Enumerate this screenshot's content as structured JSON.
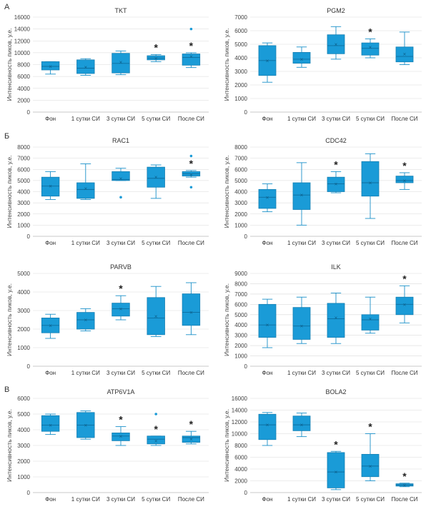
{
  "section_labels": [
    "А",
    "Б",
    "В"
  ],
  "chart_data": [
    {
      "type": "box",
      "title": "TKT",
      "ylabel": "Интенсивность пиков, у.е.",
      "categories": [
        "Фон",
        "1 сутки СИ",
        "3 сутки СИ",
        "5 сутки СИ",
        "После СИ"
      ],
      "ylim": [
        0,
        16000
      ],
      "yticks": [
        0,
        2000,
        4000,
        6000,
        8000,
        10000,
        12000,
        14000,
        16000
      ],
      "boxes": [
        {
          "min": 6400,
          "q1": 7100,
          "median": 7700,
          "q3": 8500,
          "max": 8500,
          "mean": 7700
        },
        {
          "min": 6200,
          "q1": 6500,
          "median": 7400,
          "q3": 8800,
          "max": 9000,
          "mean": 7600
        },
        {
          "min": 6300,
          "q1": 6600,
          "median": 8200,
          "q3": 9900,
          "max": 10300,
          "mean": 8400
        },
        {
          "min": 8500,
          "q1": 8800,
          "median": 9100,
          "q3": 9500,
          "max": 9700,
          "mean": 9100
        },
        {
          "min": 7500,
          "q1": 7900,
          "median": 9200,
          "q3": 9800,
          "max": 10000,
          "mean": 9400,
          "outliers": [
            14000
          ]
        }
      ],
      "significant": [
        false,
        false,
        false,
        true,
        true
      ]
    },
    {
      "type": "box",
      "title": "PGM2",
      "ylabel": "Интенсивность пиков, у.е.",
      "categories": [
        "Фон",
        "1 сутки СИ",
        "3 сутки СИ",
        "5 сутки СИ",
        "После СИ"
      ],
      "ylim": [
        0,
        7000
      ],
      "yticks": [
        0,
        1000,
        2000,
        3000,
        4000,
        5000,
        6000,
        7000
      ],
      "boxes": [
        {
          "min": 2200,
          "q1": 2700,
          "median": 3800,
          "q3": 4900,
          "max": 5100,
          "mean": 3800
        },
        {
          "min": 3300,
          "q1": 3600,
          "median": 3900,
          "q3": 4400,
          "max": 4800,
          "mean": 3900
        },
        {
          "min": 3900,
          "q1": 4300,
          "median": 4900,
          "q3": 5700,
          "max": 6300,
          "mean": 5000
        },
        {
          "min": 4000,
          "q1": 4200,
          "median": 4700,
          "q3": 5100,
          "max": 5400,
          "mean": 4800
        },
        {
          "min": 3500,
          "q1": 3700,
          "median": 4100,
          "q3": 4800,
          "max": 5900,
          "mean": 4300
        }
      ],
      "significant": [
        false,
        false,
        false,
        true,
        false
      ]
    },
    {
      "type": "box",
      "title": "RAC1",
      "ylabel": "Интенсивность пиков, у.е.",
      "categories": [
        "Фон",
        "1 сутки СИ",
        "3 сутки СИ",
        "5 сутки СИ",
        "После СИ"
      ],
      "ylim": [
        0,
        8000
      ],
      "yticks": [
        0,
        1000,
        2000,
        3000,
        4000,
        5000,
        6000,
        7000,
        8000
      ],
      "boxes": [
        {
          "min": 3300,
          "q1": 3600,
          "median": 4500,
          "q3": 5300,
          "max": 5800,
          "mean": 4500
        },
        {
          "min": 3300,
          "q1": 3400,
          "median": 4200,
          "q3": 4800,
          "max": 6500,
          "mean": 4300
        },
        {
          "min": 5000,
          "q1": 5000,
          "median": 5100,
          "q3": 5800,
          "max": 6100,
          "mean": 5200,
          "outliers": [
            3500
          ]
        },
        {
          "min": 3400,
          "q1": 4400,
          "median": 5200,
          "q3": 6200,
          "max": 6400,
          "mean": 5300
        },
        {
          "min": 5300,
          "q1": 5400,
          "median": 5600,
          "q3": 5800,
          "max": 5900,
          "mean": 5500,
          "outliers": [
            7200,
            4400
          ]
        }
      ],
      "significant": [
        false,
        false,
        false,
        false,
        true
      ]
    },
    {
      "type": "box",
      "title": "CDC42",
      "ylabel": "Интенсивность пиков, у.е.",
      "categories": [
        "Фон",
        "1 сутки СИ",
        "3 сутки СИ",
        "5 сутки СИ",
        "После СИ"
      ],
      "ylim": [
        0,
        8000
      ],
      "yticks": [
        0,
        1000,
        2000,
        3000,
        4000,
        5000,
        6000,
        7000,
        8000
      ],
      "boxes": [
        {
          "min": 2200,
          "q1": 2500,
          "median": 3500,
          "q3": 4200,
          "max": 4700,
          "mean": 3500
        },
        {
          "min": 1000,
          "q1": 2400,
          "median": 3700,
          "q3": 4800,
          "max": 6600,
          "mean": 3700
        },
        {
          "min": 3900,
          "q1": 4000,
          "median": 4700,
          "q3": 5300,
          "max": 5800,
          "mean": 4700
        },
        {
          "min": 1600,
          "q1": 3600,
          "median": 4800,
          "q3": 6700,
          "max": 7400,
          "mean": 4800
        },
        {
          "min": 4200,
          "q1": 4800,
          "median": 5000,
          "q3": 5400,
          "max": 5700,
          "mean": 5000
        }
      ],
      "significant": [
        false,
        false,
        true,
        false,
        true
      ]
    },
    {
      "type": "box",
      "title": "PARVB",
      "ylabel": "Интенсивность пиков, у.е.",
      "categories": [
        "Фон",
        "1 сутки СИ",
        "3 сутки СИ",
        "5 сутки СИ",
        "После СИ"
      ],
      "ylim": [
        0,
        5000
      ],
      "yticks": [
        0,
        1000,
        2000,
        3000,
        4000,
        5000
      ],
      "boxes": [
        {
          "min": 1500,
          "q1": 1800,
          "median": 2200,
          "q3": 2600,
          "max": 2800,
          "mean": 2200
        },
        {
          "min": 1900,
          "q1": 2000,
          "median": 2500,
          "q3": 2900,
          "max": 3100,
          "mean": 2500
        },
        {
          "min": 2500,
          "q1": 2700,
          "median": 3100,
          "q3": 3400,
          "max": 3800,
          "mean": 3100
        },
        {
          "min": 1600,
          "q1": 1700,
          "median": 2600,
          "q3": 3700,
          "max": 4300,
          "mean": 2700
        },
        {
          "min": 1700,
          "q1": 2200,
          "median": 2900,
          "q3": 3900,
          "max": 4500,
          "mean": 2900
        }
      ],
      "significant": [
        false,
        false,
        true,
        false,
        false
      ]
    },
    {
      "type": "box",
      "title": "ILK",
      "ylabel": "Интенсивность пиков, у.е.",
      "categories": [
        "Фон",
        "1 сутки СИ",
        "3 сутки СИ",
        "5 сутки СИ",
        "После СИ"
      ],
      "ylim": [
        0,
        9000
      ],
      "yticks": [
        0,
        1000,
        2000,
        3000,
        4000,
        5000,
        6000,
        7000,
        8000,
        9000
      ],
      "boxes": [
        {
          "min": 1800,
          "q1": 2800,
          "median": 4000,
          "q3": 6000,
          "max": 6500,
          "mean": 4000
        },
        {
          "min": 2200,
          "q1": 2600,
          "median": 3900,
          "q3": 5700,
          "max": 6700,
          "mean": 3900
        },
        {
          "min": 2200,
          "q1": 2800,
          "median": 4600,
          "q3": 6100,
          "max": 7100,
          "mean": 4700
        },
        {
          "min": 3200,
          "q1": 3500,
          "median": 4500,
          "q3": 5000,
          "max": 6700,
          "mean": 4600
        },
        {
          "min": 4200,
          "q1": 5000,
          "median": 6000,
          "q3": 6700,
          "max": 7800,
          "mean": 6000
        }
      ],
      "significant": [
        false,
        false,
        false,
        false,
        true
      ]
    },
    {
      "type": "box",
      "title": "ATP6V1A",
      "ylabel": "Интенсивность пиков, у.е.",
      "categories": [
        "Фон",
        "1 сутки СИ",
        "3 сутки СИ",
        "5 сутки СИ",
        "После СИ"
      ],
      "ylim": [
        0,
        6000
      ],
      "yticks": [
        0,
        1000,
        2000,
        3000,
        4000,
        5000,
        6000
      ],
      "boxes": [
        {
          "min": 3700,
          "q1": 3900,
          "median": 4300,
          "q3": 4900,
          "max": 5000,
          "mean": 4300
        },
        {
          "min": 3400,
          "q1": 3500,
          "median": 4300,
          "q3": 5100,
          "max": 5200,
          "mean": 4300
        },
        {
          "min": 3000,
          "q1": 3300,
          "median": 3600,
          "q3": 3800,
          "max": 4200,
          "mean": 3600
        },
        {
          "min": 3000,
          "q1": 3100,
          "median": 3400,
          "q3": 3600,
          "max": 3600,
          "mean": 3300,
          "outliers": [
            5000
          ]
        },
        {
          "min": 3100,
          "q1": 3200,
          "median": 3500,
          "q3": 3600,
          "max": 3900,
          "mean": 3400
        }
      ],
      "significant": [
        false,
        false,
        true,
        true,
        true
      ]
    },
    {
      "type": "box",
      "title": "BOLA2",
      "ylabel": "Интенсивность пиков, у.е.",
      "categories": [
        "Фон",
        "1 сутки СИ",
        "3 сутки СИ",
        "5 сутки СИ",
        "После СИ"
      ],
      "ylim": [
        0,
        16000
      ],
      "yticks": [
        0,
        2000,
        4000,
        6000,
        8000,
        10000,
        12000,
        14000,
        16000
      ],
      "boxes": [
        {
          "min": 8000,
          "q1": 9000,
          "median": 11500,
          "q3": 13300,
          "max": 13600,
          "mean": 11500
        },
        {
          "min": 9500,
          "q1": 10500,
          "median": 11500,
          "q3": 13000,
          "max": 13500,
          "mean": 11500
        },
        {
          "min": 500,
          "q1": 800,
          "median": 3500,
          "q3": 6800,
          "max": 7000,
          "mean": 3500
        },
        {
          "min": 2000,
          "q1": 2700,
          "median": 4500,
          "q3": 6500,
          "max": 10000,
          "mean": 4500
        },
        {
          "min": 1000,
          "q1": 1100,
          "median": 1300,
          "q3": 1500,
          "max": 1600,
          "mean": 1300
        }
      ],
      "significant": [
        false,
        false,
        true,
        true,
        true
      ]
    }
  ]
}
